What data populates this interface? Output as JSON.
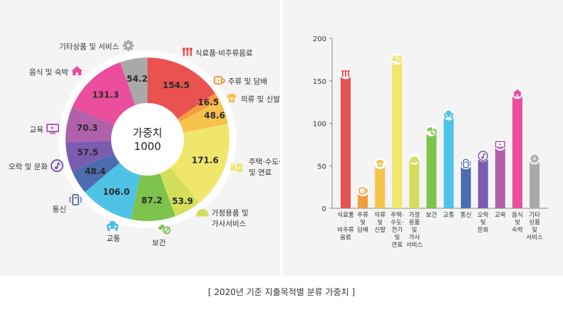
{
  "caption": "[ 2020년 기준 지출목적별 분류 가중치 ]",
  "center": {
    "line1": "가중치",
    "line2": "1000"
  },
  "colors": {
    "식료품·비주류음료": "#e9524f",
    "주류 및 담배": "#f39c3c",
    "의류 및 신발": "#f5c34a",
    "주택·수도·전기 및 연료": "#f0e66c",
    "가정용품 및 가사서비스": "#d3df5a",
    "보건": "#7ec34b",
    "교통": "#4fc3e6",
    "통신": "#4d6bb0",
    "오락 및 문화": "#7c5cb0",
    "교육": "#b160aa",
    "음식 및 숙박": "#ea4e9c",
    "기타상품 및 서비스": "#a9a9a9"
  },
  "chart_data": [
    {
      "type": "pie",
      "subtype": "donut",
      "title": "가중치 1000",
      "categories": [
        "식료품·비주류음료",
        "주류 및 담배",
        "의류 및 신발",
        "주택·수도·전기 및 연료",
        "가정용품 및 가사서비스",
        "보건",
        "교통",
        "통신",
        "오락 및 문화",
        "교육",
        "음식 및 숙박",
        "기타상품 및 서비스"
      ],
      "labels": [
        "식료품·비주류음료",
        "주류 및 담배",
        "의류 및 신발",
        "주택·수도· 전기 및 연료",
        "가정용품 및 가사서비스",
        "보건",
        "교통",
        "통신",
        "오락 및 문화",
        "교육",
        "음식 및 숙박",
        "기타상품 및 서비스"
      ],
      "value_labels": [
        "154.5",
        "16.5",
        "48.6",
        "171.6",
        "53.9",
        "87.2",
        "106.0",
        "48.4",
        "57.5",
        "70.3",
        "131.3",
        "54.2"
      ],
      "values": [
        154.5,
        16.5,
        48.6,
        171.6,
        53.9,
        87.2,
        106.0,
        48.4,
        57.5,
        70.3,
        131.3,
        54.2
      ],
      "icons": [
        "utensils-icon",
        "mug-icon",
        "shirt-icon",
        "faucet-plug-icon",
        "iron-icon",
        "pills-icon",
        "car-icon",
        "phone-icon",
        "music-icon",
        "monitor-icon",
        "house-icon",
        "gear-icon"
      ]
    },
    {
      "type": "bar",
      "categories": [
        "식료품·비주류음료",
        "주류 및 담배",
        "의류 및 신발",
        "주택·수도·전기 및 연료",
        "가정용품 및 가사서비스",
        "보건",
        "교통",
        "통신",
        "오락 및 문화",
        "교육",
        "음식 및 숙박",
        "기타상품 및 서비스"
      ],
      "tick_labels": [
        [
          "식료품",
          "·",
          "비주류",
          "음료"
        ],
        [
          "주류",
          "및",
          "담배"
        ],
        [
          "의류",
          "및",
          "신발"
        ],
        [
          "주택·",
          "수도·",
          "전기",
          "및",
          "연료"
        ],
        [
          "가정",
          "용품",
          "및",
          "가사",
          "서비스"
        ],
        [
          "보건"
        ],
        [
          "교통"
        ],
        [
          "통신"
        ],
        [
          "오락",
          "및",
          "문화"
        ],
        [
          "교육"
        ],
        [
          "음식",
          "및",
          "숙박"
        ],
        [
          "기타",
          "상품",
          "및",
          "서비스"
        ]
      ],
      "values": [
        154.5,
        16.5,
        48.6,
        171.6,
        53.9,
        87.2,
        106.0,
        48.4,
        57.5,
        70.3,
        131.3,
        54.2
      ],
      "ylim": [
        0,
        200
      ],
      "yticks": [
        "0",
        "50",
        "100",
        "150",
        "200"
      ],
      "grid": false,
      "title": "",
      "xlabel": "",
      "ylabel": ""
    }
  ]
}
